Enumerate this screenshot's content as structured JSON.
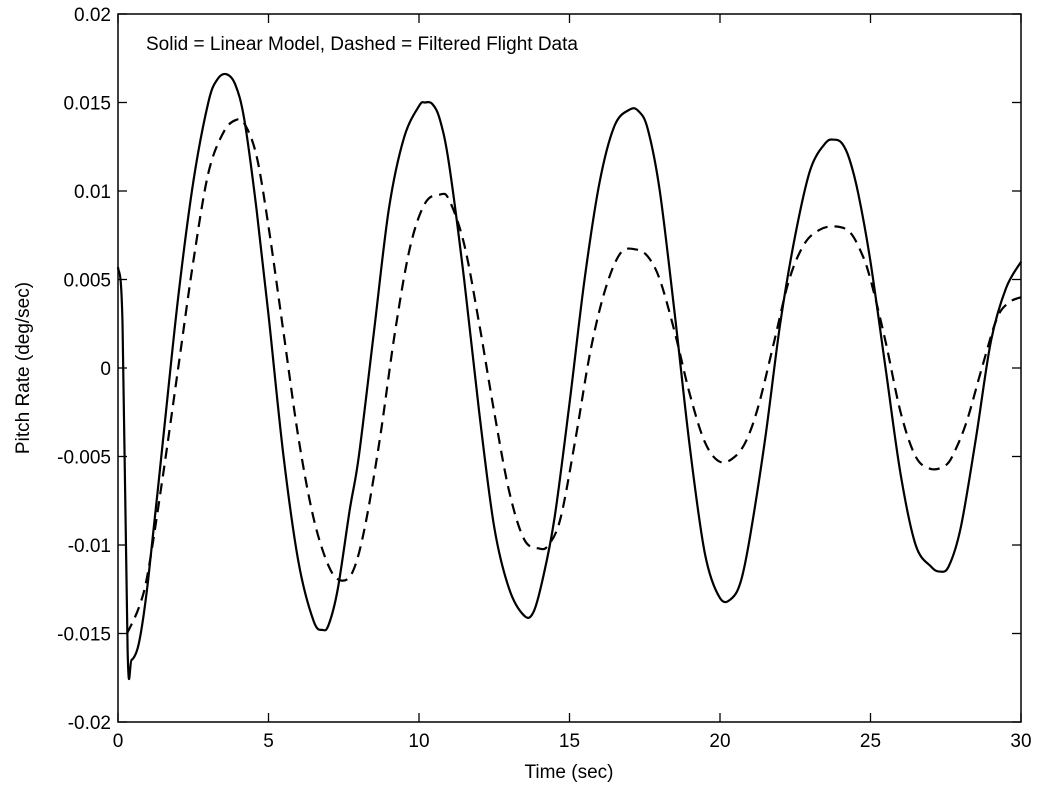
{
  "chart_data": {
    "type": "line",
    "title": "",
    "annotation": "Solid = Linear Model, Dashed = Filtered Flight Data",
    "xlabel": "Time (sec)",
    "ylabel": "Pitch Rate (deg/sec)",
    "xlim": [
      0,
      30
    ],
    "ylim": [
      -0.02,
      0.02
    ],
    "xticks": [
      0,
      5,
      10,
      15,
      20,
      25,
      30
    ],
    "xtick_labels": [
      "0",
      "5",
      "10",
      "15",
      "20",
      "25",
      "30"
    ],
    "yticks": [
      -0.02,
      -0.015,
      -0.01,
      -0.005,
      0,
      0.005,
      0.01,
      0.015,
      0.02
    ],
    "ytick_labels": [
      "-0.02",
      "-0.015",
      "-0.01",
      "-0.005",
      "0",
      "0.005",
      "0.01",
      "0.015",
      "0.02"
    ],
    "grid": false,
    "series": [
      {
        "name": "Linear Model",
        "style": "solid",
        "color": "#000000",
        "x": [
          0.0,
          0.15,
          0.32,
          0.45,
          0.7,
          1.0,
          1.5,
          2.0,
          2.5,
          3.0,
          3.3,
          3.6,
          3.9,
          4.2,
          4.6,
          5.0,
          5.5,
          6.0,
          6.5,
          6.8,
          7.0,
          7.3,
          7.7,
          8.0,
          8.5,
          9.0,
          9.5,
          10.0,
          10.2,
          10.45,
          10.7,
          11.0,
          11.5,
          12.0,
          12.5,
          13.0,
          13.5,
          13.8,
          14.1,
          14.5,
          15.0,
          15.5,
          16.0,
          16.5,
          17.0,
          17.3,
          17.6,
          18.0,
          18.5,
          19.0,
          19.5,
          20.0,
          20.4,
          20.7,
          21.0,
          21.5,
          22.0,
          22.5,
          23.0,
          23.5,
          23.8,
          24.05,
          24.3,
          24.6,
          25.0,
          25.5,
          26.0,
          26.5,
          27.0,
          27.3,
          27.6,
          28.0,
          28.5,
          29.0,
          29.5,
          30.0
        ],
        "y": [
          0.0057,
          0.0025,
          -0.016,
          -0.0165,
          -0.0155,
          -0.012,
          -0.004,
          0.004,
          0.0105,
          0.015,
          0.0163,
          0.0166,
          0.016,
          0.014,
          0.009,
          0.003,
          -0.005,
          -0.011,
          -0.0143,
          -0.0148,
          -0.0145,
          -0.0125,
          -0.008,
          -0.005,
          0.002,
          0.009,
          0.013,
          0.0148,
          0.015,
          0.0149,
          0.014,
          0.0115,
          0.005,
          -0.0025,
          -0.009,
          -0.0125,
          -0.014,
          -0.0138,
          -0.012,
          -0.0085,
          -0.002,
          0.005,
          0.0105,
          0.0137,
          0.0146,
          0.0145,
          0.0135,
          0.01,
          0.003,
          -0.0045,
          -0.0105,
          -0.013,
          -0.013,
          -0.012,
          -0.0095,
          -0.004,
          0.0025,
          0.0075,
          0.0112,
          0.0127,
          0.0129,
          0.0127,
          0.0118,
          0.0098,
          0.006,
          0.0,
          -0.006,
          -0.01,
          -0.0112,
          -0.0115,
          -0.0112,
          -0.009,
          -0.004,
          0.0015,
          0.0045,
          0.006
        ]
      },
      {
        "name": "Filtered Flight Data",
        "style": "dashed",
        "color": "#000000",
        "x": [
          0.3,
          0.7,
          1.0,
          1.5,
          2.0,
          2.5,
          3.0,
          3.5,
          3.9,
          4.2,
          4.6,
          5.0,
          5.5,
          6.0,
          6.5,
          7.0,
          7.4,
          7.8,
          8.2,
          8.7,
          9.2,
          9.7,
          10.2,
          10.7,
          11.0,
          11.5,
          12.0,
          12.5,
          13.0,
          13.5,
          14.0,
          14.3,
          14.7,
          15.2,
          15.7,
          16.2,
          16.7,
          17.2,
          17.6,
          18.0,
          18.5,
          19.0,
          19.5,
          20.0,
          20.5,
          20.9,
          21.3,
          21.8,
          22.3,
          22.8,
          23.3,
          23.8,
          24.3,
          24.7,
          25.0,
          25.5,
          26.0,
          26.5,
          27.0,
          27.5,
          27.8,
          28.2,
          28.7,
          29.2,
          29.6,
          30.0
        ],
        "y": [
          -0.015,
          -0.0135,
          -0.0115,
          -0.006,
          0.0,
          0.006,
          0.011,
          0.0133,
          0.014,
          0.0138,
          0.012,
          0.008,
          0.002,
          -0.004,
          -0.0085,
          -0.0112,
          -0.012,
          -0.0115,
          -0.009,
          -0.004,
          0.002,
          0.0068,
          0.0093,
          0.0098,
          0.0095,
          0.007,
          0.0025,
          -0.0025,
          -0.007,
          -0.0097,
          -0.0102,
          -0.01,
          -0.0085,
          -0.004,
          0.001,
          0.0045,
          0.0065,
          0.0067,
          0.0063,
          0.005,
          0.002,
          -0.0015,
          -0.0042,
          -0.0053,
          -0.005,
          -0.004,
          -0.002,
          0.0015,
          0.005,
          0.007,
          0.0078,
          0.008,
          0.0077,
          0.0065,
          0.005,
          0.0015,
          -0.0025,
          -0.005,
          -0.0057,
          -0.0055,
          -0.0047,
          -0.003,
          0.0,
          0.0028,
          0.0037,
          0.004
        ]
      }
    ]
  }
}
